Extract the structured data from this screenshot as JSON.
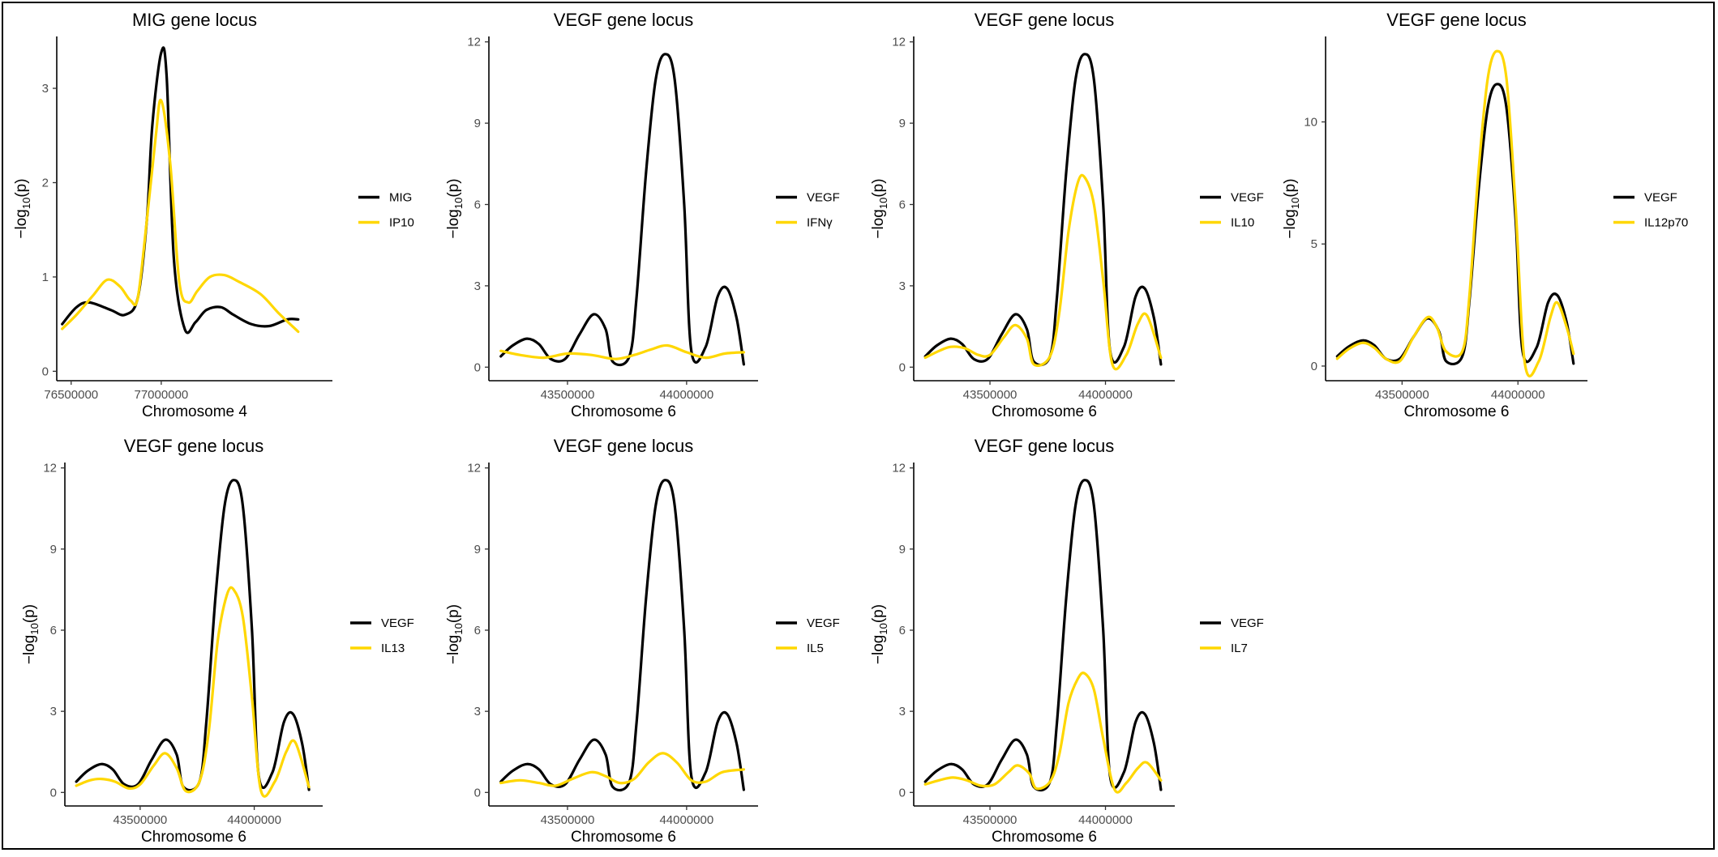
{
  "colors": {
    "primary_trait": "#000000",
    "secondary_trait": "#FFD700",
    "axis": "#000000",
    "tick_text": "#4d4d4d"
  },
  "chart_data": [
    {
      "type": "line",
      "title": "MIG gene locus",
      "xlabel": "Chromosome 4",
      "ylabel_prefix": "−log",
      "ylabel_sub": "10",
      "ylabel_suffix": "(p)",
      "xlim": [
        76420000,
        77950000
      ],
      "ylim": [
        -0.1,
        3.55
      ],
      "xticks": [
        76500000,
        77000000
      ],
      "xtick_labels": [
        "76500000",
        "77000000"
      ],
      "yticks": [
        0,
        1,
        2,
        3
      ],
      "ytick_labels": [
        "0",
        "1",
        "2",
        "3"
      ],
      "legend_position": "right",
      "series": [
        {
          "name": "MIG",
          "color": "#000000",
          "x": [
            76450000,
            76530000,
            76600000,
            76720000,
            76800000,
            76870000,
            76920000,
            76950000,
            77000000,
            77030000,
            77070000,
            77130000,
            77190000,
            77250000,
            77330000,
            77400000,
            77500000,
            77600000,
            77700000,
            77760000
          ],
          "y": [
            0.5,
            0.68,
            0.73,
            0.65,
            0.6,
            0.78,
            1.6,
            2.6,
            3.38,
            3.12,
            1.2,
            0.45,
            0.52,
            0.65,
            0.68,
            0.6,
            0.5,
            0.48,
            0.55,
            0.55
          ]
        },
        {
          "name": "IP10",
          "color": "#FFD700",
          "x": [
            76450000,
            76530000,
            76620000,
            76700000,
            76770000,
            76830000,
            76870000,
            76920000,
            76970000,
            77000000,
            77050000,
            77100000,
            77150000,
            77200000,
            77270000,
            77350000,
            77430000,
            77550000,
            77650000,
            77760000
          ],
          "y": [
            0.45,
            0.6,
            0.8,
            0.97,
            0.9,
            0.75,
            0.78,
            1.6,
            2.5,
            2.87,
            2.2,
            0.95,
            0.73,
            0.85,
            1.0,
            1.02,
            0.95,
            0.82,
            0.62,
            0.42
          ]
        }
      ]
    },
    {
      "type": "line",
      "title": "VEGF gene locus",
      "xlabel": "Chromosome 6",
      "ylabel_prefix": "−log",
      "ylabel_sub": "10",
      "ylabel_suffix": "(p)",
      "xlim": [
        43170000,
        44300000
      ],
      "ylim": [
        -0.5,
        12.2
      ],
      "xticks": [
        43500000,
        44000000
      ],
      "xtick_labels": [
        "43500000",
        "44000000"
      ],
      "yticks": [
        0,
        3,
        6,
        9,
        12
      ],
      "ytick_labels": [
        "0",
        "3",
        "6",
        "9",
        "12"
      ],
      "legend_position": "right",
      "series": [
        {
          "name": "VEGF",
          "color": "#000000",
          "x": [
            43220000,
            43270000,
            43330000,
            43380000,
            43430000,
            43490000,
            43550000,
            43610000,
            43660000,
            43690000,
            43760000,
            43790000,
            43830000,
            43870000,
            43910000,
            43950000,
            43990000,
            44020000,
            44080000,
            44130000,
            44170000,
            44210000,
            44240000
          ],
          "y": [
            0.4,
            0.8,
            1.05,
            0.85,
            0.3,
            0.3,
            1.2,
            1.95,
            1.4,
            0.2,
            0.4,
            2.6,
            7.2,
            10.6,
            11.55,
            10.6,
            6.0,
            0.6,
            0.75,
            2.6,
            2.9,
            1.8,
            0.1
          ]
        },
        {
          "name": "IFNγ",
          "color": "#FFD700",
          "x": [
            43220000,
            43300000,
            43400000,
            43500000,
            43600000,
            43700000,
            43780000,
            43850000,
            43920000,
            44000000,
            44080000,
            44160000,
            44240000
          ],
          "y": [
            0.6,
            0.45,
            0.35,
            0.5,
            0.45,
            0.3,
            0.45,
            0.65,
            0.8,
            0.55,
            0.35,
            0.5,
            0.55
          ]
        }
      ]
    },
    {
      "type": "line",
      "title": "VEGF gene locus",
      "xlabel": "Chromosome 6",
      "ylabel_prefix": "−log",
      "ylabel_sub": "10",
      "ylabel_suffix": "(p)",
      "xlim": [
        43170000,
        44300000
      ],
      "ylim": [
        -0.5,
        12.2
      ],
      "xticks": [
        43500000,
        44000000
      ],
      "xtick_labels": [
        "43500000",
        "44000000"
      ],
      "yticks": [
        0,
        3,
        6,
        9,
        12
      ],
      "ytick_labels": [
        "0",
        "3",
        "6",
        "9",
        "12"
      ],
      "legend_position": "right",
      "series": [
        {
          "name": "VEGF",
          "color": "#000000",
          "x": [
            43220000,
            43270000,
            43330000,
            43380000,
            43430000,
            43490000,
            43550000,
            43610000,
            43660000,
            43690000,
            43760000,
            43790000,
            43830000,
            43870000,
            43910000,
            43950000,
            43990000,
            44020000,
            44080000,
            44130000,
            44170000,
            44210000,
            44240000
          ],
          "y": [
            0.4,
            0.8,
            1.05,
            0.85,
            0.3,
            0.3,
            1.2,
            1.95,
            1.4,
            0.2,
            0.4,
            2.6,
            7.2,
            10.6,
            11.55,
            10.6,
            6.0,
            0.6,
            0.75,
            2.6,
            2.9,
            1.8,
            0.1
          ]
        },
        {
          "name": "IL10",
          "color": "#FFD700",
          "x": [
            43220000,
            43280000,
            43330000,
            43390000,
            43450000,
            43500000,
            43560000,
            43610000,
            43660000,
            43690000,
            43760000,
            43800000,
            43840000,
            43880000,
            43910000,
            43950000,
            43990000,
            44030000,
            44090000,
            44140000,
            44180000,
            44240000
          ],
          "y": [
            0.35,
            0.6,
            0.75,
            0.7,
            0.45,
            0.45,
            1.1,
            1.55,
            1.05,
            0.1,
            0.4,
            2.0,
            5.0,
            6.8,
            7.0,
            6.0,
            3.2,
            0.1,
            0.45,
            1.6,
            1.9,
            0.35
          ]
        }
      ]
    },
    {
      "type": "line",
      "title": "VEGF gene locus",
      "xlabel": "Chromosome 6",
      "ylabel_prefix": "−log",
      "ylabel_sub": "10",
      "ylabel_suffix": "(p)",
      "xlim": [
        43170000,
        44300000
      ],
      "ylim": [
        -0.6,
        13.5
      ],
      "xticks": [
        43500000,
        44000000
      ],
      "xtick_labels": [
        "43500000",
        "44000000"
      ],
      "yticks": [
        0,
        5,
        10
      ],
      "ytick_labels": [
        "0",
        "5",
        "10"
      ],
      "legend_position": "right",
      "series": [
        {
          "name": "VEGF",
          "color": "#000000",
          "x": [
            43220000,
            43270000,
            43330000,
            43380000,
            43430000,
            43490000,
            43550000,
            43610000,
            43660000,
            43690000,
            43760000,
            43790000,
            43830000,
            43870000,
            43910000,
            43950000,
            43990000,
            44020000,
            44080000,
            44130000,
            44170000,
            44210000,
            44240000
          ],
          "y": [
            0.4,
            0.8,
            1.05,
            0.85,
            0.3,
            0.3,
            1.2,
            1.95,
            1.4,
            0.2,
            0.4,
            2.6,
            7.2,
            10.6,
            11.55,
            10.6,
            6.0,
            0.6,
            0.75,
            2.6,
            2.9,
            1.8,
            0.1
          ]
        },
        {
          "name": "IL12p70",
          "color": "#FFD700",
          "x": [
            43220000,
            43270000,
            43330000,
            43380000,
            43430000,
            43490000,
            43550000,
            43610000,
            43650000,
            43690000,
            43760000,
            43790000,
            43830000,
            43870000,
            43910000,
            43950000,
            43990000,
            44030000,
            44090000,
            44140000,
            44170000,
            44210000,
            44240000
          ],
          "y": [
            0.3,
            0.7,
            0.95,
            0.75,
            0.3,
            0.2,
            1.2,
            2.0,
            1.6,
            0.6,
            0.6,
            2.8,
            8.0,
            11.8,
            12.9,
            11.8,
            6.5,
            0.1,
            0.2,
            2.0,
            2.6,
            1.6,
            0.5
          ]
        }
      ]
    },
    {
      "type": "line",
      "title": "VEGF gene locus",
      "xlabel": "Chromosome 6",
      "ylabel_prefix": "−log",
      "ylabel_sub": "10",
      "ylabel_suffix": "(p)",
      "xlim": [
        43170000,
        44300000
      ],
      "ylim": [
        -0.5,
        12.2
      ],
      "xticks": [
        43500000,
        44000000
      ],
      "xtick_labels": [
        "43500000",
        "44000000"
      ],
      "yticks": [
        0,
        3,
        6,
        9,
        12
      ],
      "ytick_labels": [
        "0",
        "3",
        "6",
        "9",
        "12"
      ],
      "legend_position": "right",
      "series": [
        {
          "name": "VEGF",
          "color": "#000000",
          "x": [
            43220000,
            43270000,
            43330000,
            43380000,
            43430000,
            43490000,
            43550000,
            43610000,
            43660000,
            43690000,
            43760000,
            43790000,
            43830000,
            43870000,
            43910000,
            43950000,
            43990000,
            44020000,
            44080000,
            44130000,
            44170000,
            44210000,
            44240000
          ],
          "y": [
            0.4,
            0.8,
            1.05,
            0.85,
            0.3,
            0.3,
            1.2,
            1.95,
            1.4,
            0.2,
            0.4,
            2.6,
            7.2,
            10.6,
            11.55,
            10.6,
            6.0,
            0.6,
            0.75,
            2.6,
            2.9,
            1.8,
            0.1
          ]
        },
        {
          "name": "IL13",
          "color": "#FFD700",
          "x": [
            43220000,
            43280000,
            43330000,
            43390000,
            43450000,
            43500000,
            43560000,
            43610000,
            43660000,
            43700000,
            43760000,
            43800000,
            43840000,
            43880000,
            43910000,
            43950000,
            43990000,
            44030000,
            44090000,
            44140000,
            44180000,
            44240000
          ],
          "y": [
            0.25,
            0.45,
            0.5,
            0.4,
            0.15,
            0.3,
            1.0,
            1.45,
            0.9,
            0.05,
            0.4,
            2.2,
            5.6,
            7.3,
            7.5,
            6.5,
            3.5,
            0.05,
            0.4,
            1.5,
            1.85,
            0.2
          ]
        }
      ]
    },
    {
      "type": "line",
      "title": "VEGF gene locus",
      "xlabel": "Chromosome 6",
      "ylabel_prefix": "−log",
      "ylabel_sub": "10",
      "ylabel_suffix": "(p)",
      "xlim": [
        43170000,
        44300000
      ],
      "ylim": [
        -0.5,
        12.2
      ],
      "xticks": [
        43500000,
        44000000
      ],
      "xtick_labels": [
        "43500000",
        "44000000"
      ],
      "yticks": [
        0,
        3,
        6,
        9,
        12
      ],
      "ytick_labels": [
        "0",
        "3",
        "6",
        "9",
        "12"
      ],
      "legend_position": "right",
      "series": [
        {
          "name": "VEGF",
          "color": "#000000",
          "x": [
            43220000,
            43270000,
            43330000,
            43380000,
            43430000,
            43490000,
            43550000,
            43610000,
            43660000,
            43690000,
            43760000,
            43790000,
            43830000,
            43870000,
            43910000,
            43950000,
            43990000,
            44020000,
            44080000,
            44130000,
            44170000,
            44210000,
            44240000
          ],
          "y": [
            0.4,
            0.8,
            1.05,
            0.85,
            0.3,
            0.3,
            1.2,
            1.95,
            1.4,
            0.2,
            0.4,
            2.6,
            7.2,
            10.6,
            11.55,
            10.6,
            6.0,
            0.6,
            0.75,
            2.6,
            2.9,
            1.8,
            0.1
          ]
        },
        {
          "name": "IL5",
          "color": "#FFD700",
          "x": [
            43220000,
            43300000,
            43380000,
            43450000,
            43520000,
            43600000,
            43660000,
            43720000,
            43780000,
            43840000,
            43900000,
            43960000,
            44020000,
            44080000,
            44150000,
            44240000
          ],
          "y": [
            0.35,
            0.45,
            0.35,
            0.25,
            0.5,
            0.75,
            0.6,
            0.35,
            0.5,
            1.1,
            1.45,
            1.1,
            0.45,
            0.4,
            0.75,
            0.85
          ]
        }
      ]
    },
    {
      "type": "line",
      "title": "VEGF gene locus",
      "xlabel": "Chromosome 6",
      "ylabel_prefix": "−log",
      "ylabel_sub": "10",
      "ylabel_suffix": "(p)",
      "xlim": [
        43170000,
        44300000
      ],
      "ylim": [
        -0.5,
        12.2
      ],
      "xticks": [
        43500000,
        44000000
      ],
      "xtick_labels": [
        "43500000",
        "44000000"
      ],
      "yticks": [
        0,
        3,
        6,
        9,
        12
      ],
      "ytick_labels": [
        "0",
        "3",
        "6",
        "9",
        "12"
      ],
      "legend_position": "right",
      "series": [
        {
          "name": "VEGF",
          "color": "#000000",
          "x": [
            43220000,
            43270000,
            43330000,
            43380000,
            43430000,
            43490000,
            43550000,
            43610000,
            43660000,
            43690000,
            43760000,
            43790000,
            43830000,
            43870000,
            43910000,
            43950000,
            43990000,
            44020000,
            44080000,
            44130000,
            44170000,
            44210000,
            44240000
          ],
          "y": [
            0.4,
            0.8,
            1.05,
            0.85,
            0.3,
            0.3,
            1.2,
            1.95,
            1.4,
            0.2,
            0.4,
            2.6,
            7.2,
            10.6,
            11.55,
            10.6,
            6.0,
            0.6,
            0.75,
            2.6,
            2.9,
            1.8,
            0.1
          ]
        },
        {
          "name": "IL7",
          "color": "#FFD700",
          "x": [
            43220000,
            43280000,
            43340000,
            43400000,
            43460000,
            43520000,
            43580000,
            43620000,
            43670000,
            43700000,
            43760000,
            43800000,
            43840000,
            43880000,
            43910000,
            43950000,
            43990000,
            44040000,
            44090000,
            44140000,
            44180000,
            44240000
          ],
          "y": [
            0.3,
            0.45,
            0.55,
            0.45,
            0.25,
            0.3,
            0.75,
            1.0,
            0.7,
            0.15,
            0.4,
            1.4,
            3.3,
            4.2,
            4.4,
            3.8,
            2.0,
            0.1,
            0.35,
            0.9,
            1.1,
            0.45
          ]
        }
      ]
    }
  ]
}
